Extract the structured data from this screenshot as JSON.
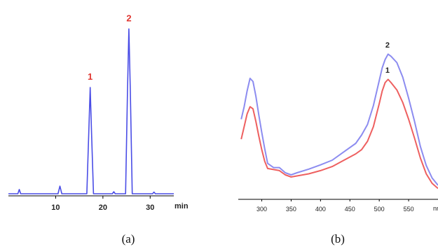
{
  "chart_data": [
    {
      "type": "line",
      "panel_label": "(a)",
      "xlabel": "min",
      "xlim": [
        0,
        35
      ],
      "ylim": [
        0,
        1
      ],
      "x_ticks": [
        "10",
        "20",
        "30"
      ],
      "series": [
        {
          "color": "#4a4de6",
          "x": [
            0.0,
            2.0,
            2.3,
            2.6,
            5.0,
            10.5,
            10.9,
            11.3,
            16.6,
            17.0,
            17.3,
            17.6,
            18.0,
            22.0,
            22.3,
            22.6,
            24.8,
            25.2,
            25.5,
            25.8,
            26.2,
            30.5,
            30.8,
            31.1,
            35.0
          ],
          "y": [
            0.0,
            0.0,
            0.025,
            0.0,
            0.0,
            0.0,
            0.045,
            0.0,
            0.0,
            0.35,
            0.625,
            0.35,
            0.0,
            0.0,
            0.012,
            0.0,
            0.0,
            0.6,
            0.97,
            0.6,
            0.0,
            0.0,
            0.01,
            0.0,
            0.0
          ]
        }
      ],
      "annotations": [
        {
          "text": "1",
          "x": 17.3,
          "y": 0.625,
          "color": "#e0352f"
        },
        {
          "text": "2",
          "x": 25.5,
          "y": 0.97,
          "color": "#e0352f"
        }
      ]
    },
    {
      "type": "line",
      "panel_label": "(b)",
      "xlabel": "nm",
      "xlim": [
        260,
        600
      ],
      "ylim": [
        0,
        1
      ],
      "x_ticks": [
        "300",
        "350",
        "400",
        "450",
        "500",
        "550"
      ],
      "series": [
        {
          "color": "#8c8cf0",
          "x": [
            265,
            270,
            275,
            280,
            285,
            290,
            295,
            300,
            305,
            310,
            320,
            330,
            340,
            350,
            360,
            380,
            400,
            420,
            440,
            460,
            470,
            480,
            490,
            500,
            505,
            510,
            515,
            520,
            530,
            540,
            550,
            560,
            570,
            580,
            590,
            600
          ],
          "y": [
            0.507,
            0.59,
            0.694,
            0.778,
            0.757,
            0.66,
            0.535,
            0.42,
            0.313,
            0.215,
            0.187,
            0.187,
            0.153,
            0.139,
            0.153,
            0.177,
            0.205,
            0.236,
            0.292,
            0.347,
            0.403,
            0.472,
            0.597,
            0.764,
            0.847,
            0.903,
            0.938,
            0.924,
            0.882,
            0.785,
            0.646,
            0.493,
            0.326,
            0.201,
            0.118,
            0.07
          ]
        },
        {
          "color": "#ee6060",
          "x": [
            265,
            270,
            275,
            280,
            285,
            290,
            295,
            300,
            305,
            310,
            320,
            330,
            340,
            350,
            360,
            380,
            400,
            420,
            440,
            460,
            470,
            480,
            490,
            500,
            505,
            510,
            515,
            520,
            530,
            540,
            550,
            560,
            570,
            580,
            590,
            600
          ],
          "y": [
            0.375,
            0.458,
            0.542,
            0.59,
            0.576,
            0.493,
            0.396,
            0.306,
            0.229,
            0.181,
            0.174,
            0.167,
            0.139,
            0.125,
            0.132,
            0.146,
            0.167,
            0.194,
            0.236,
            0.278,
            0.306,
            0.361,
            0.458,
            0.611,
            0.694,
            0.75,
            0.771,
            0.75,
            0.701,
            0.618,
            0.507,
            0.382,
            0.25,
            0.146,
            0.083,
            0.049
          ]
        }
      ],
      "annotations": [
        {
          "text": "2",
          "x": 514,
          "y": 0.94
        },
        {
          "text": "1",
          "x": 514,
          "y": 0.772
        }
      ]
    }
  ]
}
